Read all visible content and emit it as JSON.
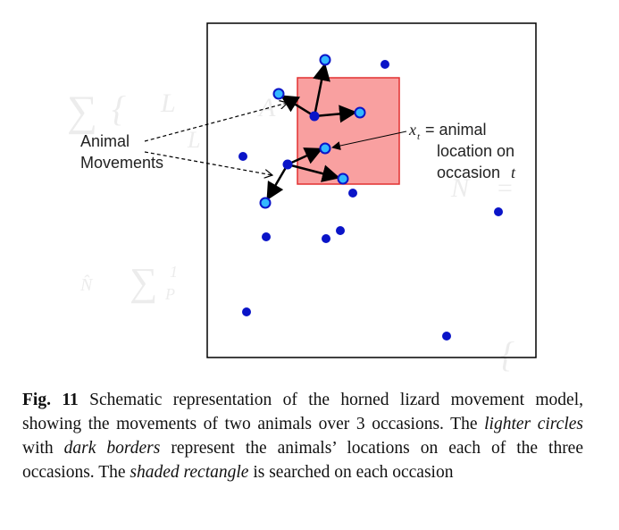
{
  "figure": {
    "left_label_line1": "Animal",
    "left_label_line2": "Movements",
    "right_label_symbol": "x",
    "right_label_subscript": "t",
    "right_label_line1": "= animal",
    "right_label_line2": "location on",
    "right_label_line3": "occasion",
    "right_label_var": "t",
    "colors": {
      "search_area_fill": "#f9a0a0",
      "search_area_border": "#e23030",
      "dark_point": "#0a14c8",
      "light_point_fill": "#33b8ff",
      "light_point_border": "#0a14c8",
      "arrow": "#000000",
      "frame": "#000000"
    }
  },
  "caption": {
    "label": "Fig. 11",
    "text_1": " Schematic representation of the horned lizard movement model, showing the movements of two animals over 3 occasions. The ",
    "italic_1": "lighter circles",
    "text_2": " with ",
    "italic_2": "dark borders",
    "text_3": " represent the animals’ locations on each of the three occasions. The ",
    "italic_3": "shaded rectangle",
    "text_4": " is searched on each occasion"
  }
}
